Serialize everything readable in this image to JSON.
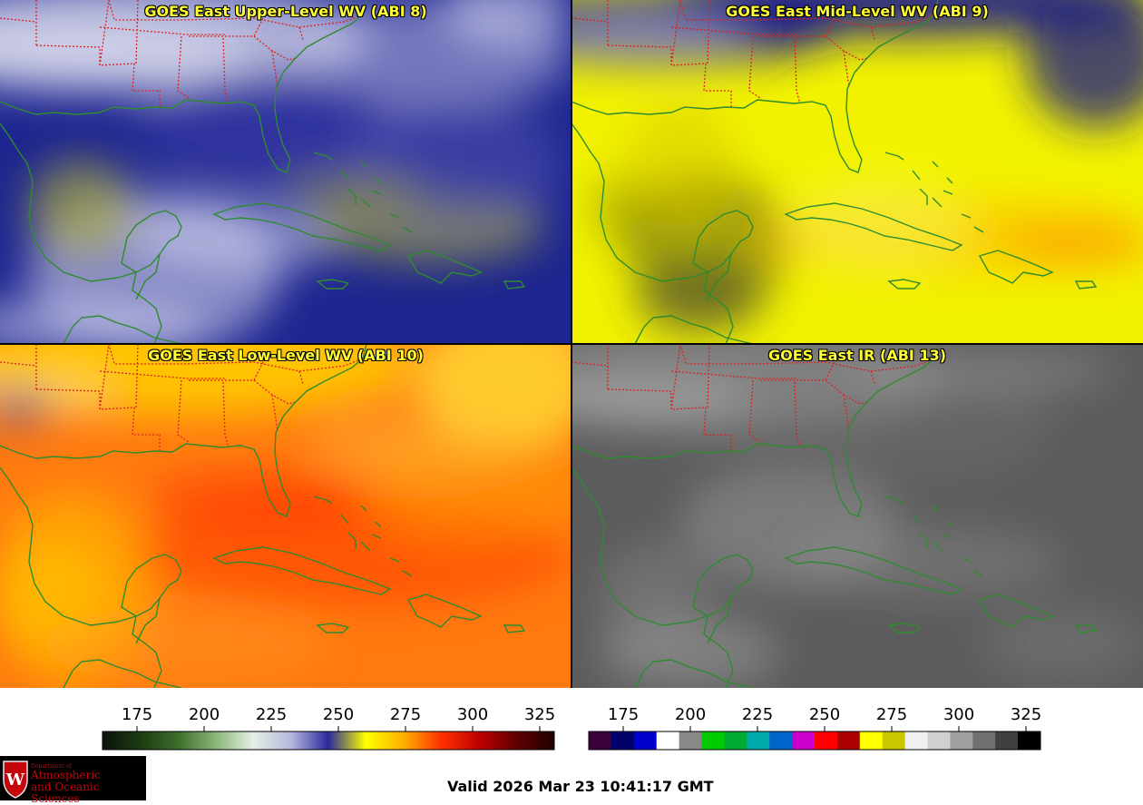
{
  "panels": [
    {
      "title": "GOES East Upper-Level WV (ABI 8)",
      "scheme": "upper"
    },
    {
      "title": "GOES East Mid-Level WV (ABI 9)",
      "scheme": "mid"
    },
    {
      "title": "GOES East Low-Level WV (ABI 10)",
      "scheme": "low"
    },
    {
      "title": "GOES East IR (ABI 13)",
      "scheme": "ir"
    }
  ],
  "colorbars": {
    "wv": {
      "ticks": [
        "175",
        "200",
        "225",
        "250",
        "275",
        "300",
        "325"
      ],
      "stops": [
        "#0a140a",
        "#1d3a12",
        "#3c6e2a",
        "#8cb57a",
        "#e4efe4",
        "#b8b8e0",
        "#2a2a9a",
        "#ffff00",
        "#ffb000",
        "#ff3000",
        "#c00000",
        "#600000",
        "#200000"
      ]
    },
    "ir": {
      "ticks": [
        "175",
        "200",
        "225",
        "250",
        "275",
        "300",
        "325"
      ],
      "segments": [
        "#3a003a",
        "#00006a",
        "#0000cc",
        "#ffffff",
        "#888888",
        "#00cc00",
        "#00aa33",
        "#00aaaa",
        "#0066cc",
        "#cc00cc",
        "#ff0000",
        "#aa0000",
        "#ffff00",
        "#c8c800",
        "#f0f0f0",
        "#d0d0d0",
        "#a0a0a0",
        "#707070",
        "#404040",
        "#000000"
      ]
    }
  },
  "logo": {
    "dept": "Department of",
    "line1": "Atmospheric",
    "line2": "and Oceanic Sciences",
    "crest": "W"
  },
  "valid_text": "Valid 2026 Mar 23 10:41:17 GMT",
  "colors": {
    "coast": "#2e8b2e",
    "state_border": "#dd2222",
    "title": "#ffff33"
  }
}
